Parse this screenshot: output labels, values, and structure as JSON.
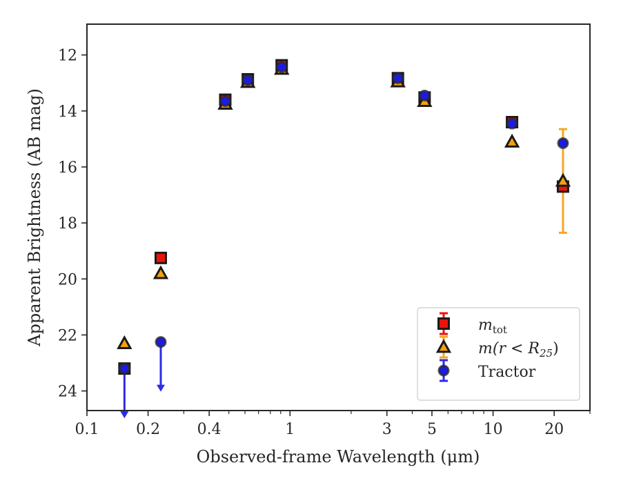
{
  "chart_data": {
    "type": "scatter",
    "xlabel": "Observed-frame Wavelength (μm)",
    "ylabel": "Apparent Brightness (AB mag)",
    "x_scale": "log",
    "xlim": [
      0.1,
      30
    ],
    "ylim": [
      24.7,
      10.9
    ],
    "y_inverted": true,
    "x_ticks": [
      {
        "value": 0.1,
        "label": "0.1"
      },
      {
        "value": 0.2,
        "label": "0.2"
      },
      {
        "value": 0.4,
        "label": "0.4"
      },
      {
        "value": 1,
        "label": "1"
      },
      {
        "value": 3,
        "label": "3"
      },
      {
        "value": 5,
        "label": "5"
      },
      {
        "value": 10,
        "label": "10"
      },
      {
        "value": 20,
        "label": "20"
      }
    ],
    "x_minor_ticks": [
      0.3,
      0.5,
      0.6,
      0.7,
      0.8,
      0.9,
      2,
      4,
      6,
      7,
      8,
      9,
      30
    ],
    "y_ticks": [
      {
        "value": 12,
        "label": "12"
      },
      {
        "value": 14,
        "label": "14"
      },
      {
        "value": 16,
        "label": "16"
      },
      {
        "value": 18,
        "label": "18"
      },
      {
        "value": 20,
        "label": "20"
      },
      {
        "value": 22,
        "label": "22"
      },
      {
        "value": 24,
        "label": "24"
      }
    ],
    "grid": false,
    "legend_position": "lower right",
    "series": [
      {
        "legend_key": "m_tot",
        "marker": "square",
        "color": "#e8140c",
        "edge_color": "#1a1a1a",
        "error_color": "#e8140c",
        "points": [
          {
            "x": 0.153,
            "y": 23.2
          },
          {
            "x": 0.231,
            "y": 19.25
          },
          {
            "x": 0.48,
            "y": 13.6
          },
          {
            "x": 0.62,
            "y": 12.87
          },
          {
            "x": 0.91,
            "y": 12.37
          },
          {
            "x": 3.4,
            "y": 12.83
          },
          {
            "x": 4.6,
            "y": 13.52
          },
          {
            "x": 12.4,
            "y": 14.4
          },
          {
            "x": 22.1,
            "y": 16.7
          }
        ]
      },
      {
        "legend_key": "m_r25",
        "marker": "triangle",
        "color": "#f5a00c",
        "edge_color": "#1a1a1a",
        "error_color": "#f5a623",
        "points": [
          {
            "x": 0.153,
            "y": 22.3
          },
          {
            "x": 0.231,
            "y": 19.8
          },
          {
            "x": 0.48,
            "y": 13.75
          },
          {
            "x": 0.62,
            "y": 12.97
          },
          {
            "x": 0.91,
            "y": 12.5
          },
          {
            "x": 3.4,
            "y": 12.95
          },
          {
            "x": 4.6,
            "y": 13.65
          },
          {
            "x": 12.4,
            "y": 15.1
          },
          {
            "x": 22.1,
            "y": 16.5,
            "err_low": 1.85,
            "err_high": 1.85
          }
        ]
      },
      {
        "legend_key": "tractor",
        "marker": "circle",
        "color": "#1c1ce0",
        "edge_color": "#2a2a2a",
        "error_color": "#2b2be8",
        "points": [
          {
            "x": 0.153,
            "y": 23.2,
            "upper_limit": true
          },
          {
            "x": 0.231,
            "y": 22.25,
            "upper_limit": true
          },
          {
            "x": 0.48,
            "y": 13.65
          },
          {
            "x": 0.62,
            "y": 12.9
          },
          {
            "x": 0.91,
            "y": 12.43
          },
          {
            "x": 3.4,
            "y": 12.83
          },
          {
            "x": 4.6,
            "y": 13.45
          },
          {
            "x": 12.4,
            "y": 14.45
          },
          {
            "x": 22.1,
            "y": 15.15
          }
        ]
      }
    ],
    "legend": [
      {
        "key": "m_tot",
        "italic": "m",
        "sub": "tot",
        "rest": ""
      },
      {
        "key": "m_r25",
        "italic": "m",
        "text": "(r < R",
        "sub": "25",
        "rest": ")"
      },
      {
        "key": "tractor",
        "text": "Tractor"
      }
    ]
  }
}
